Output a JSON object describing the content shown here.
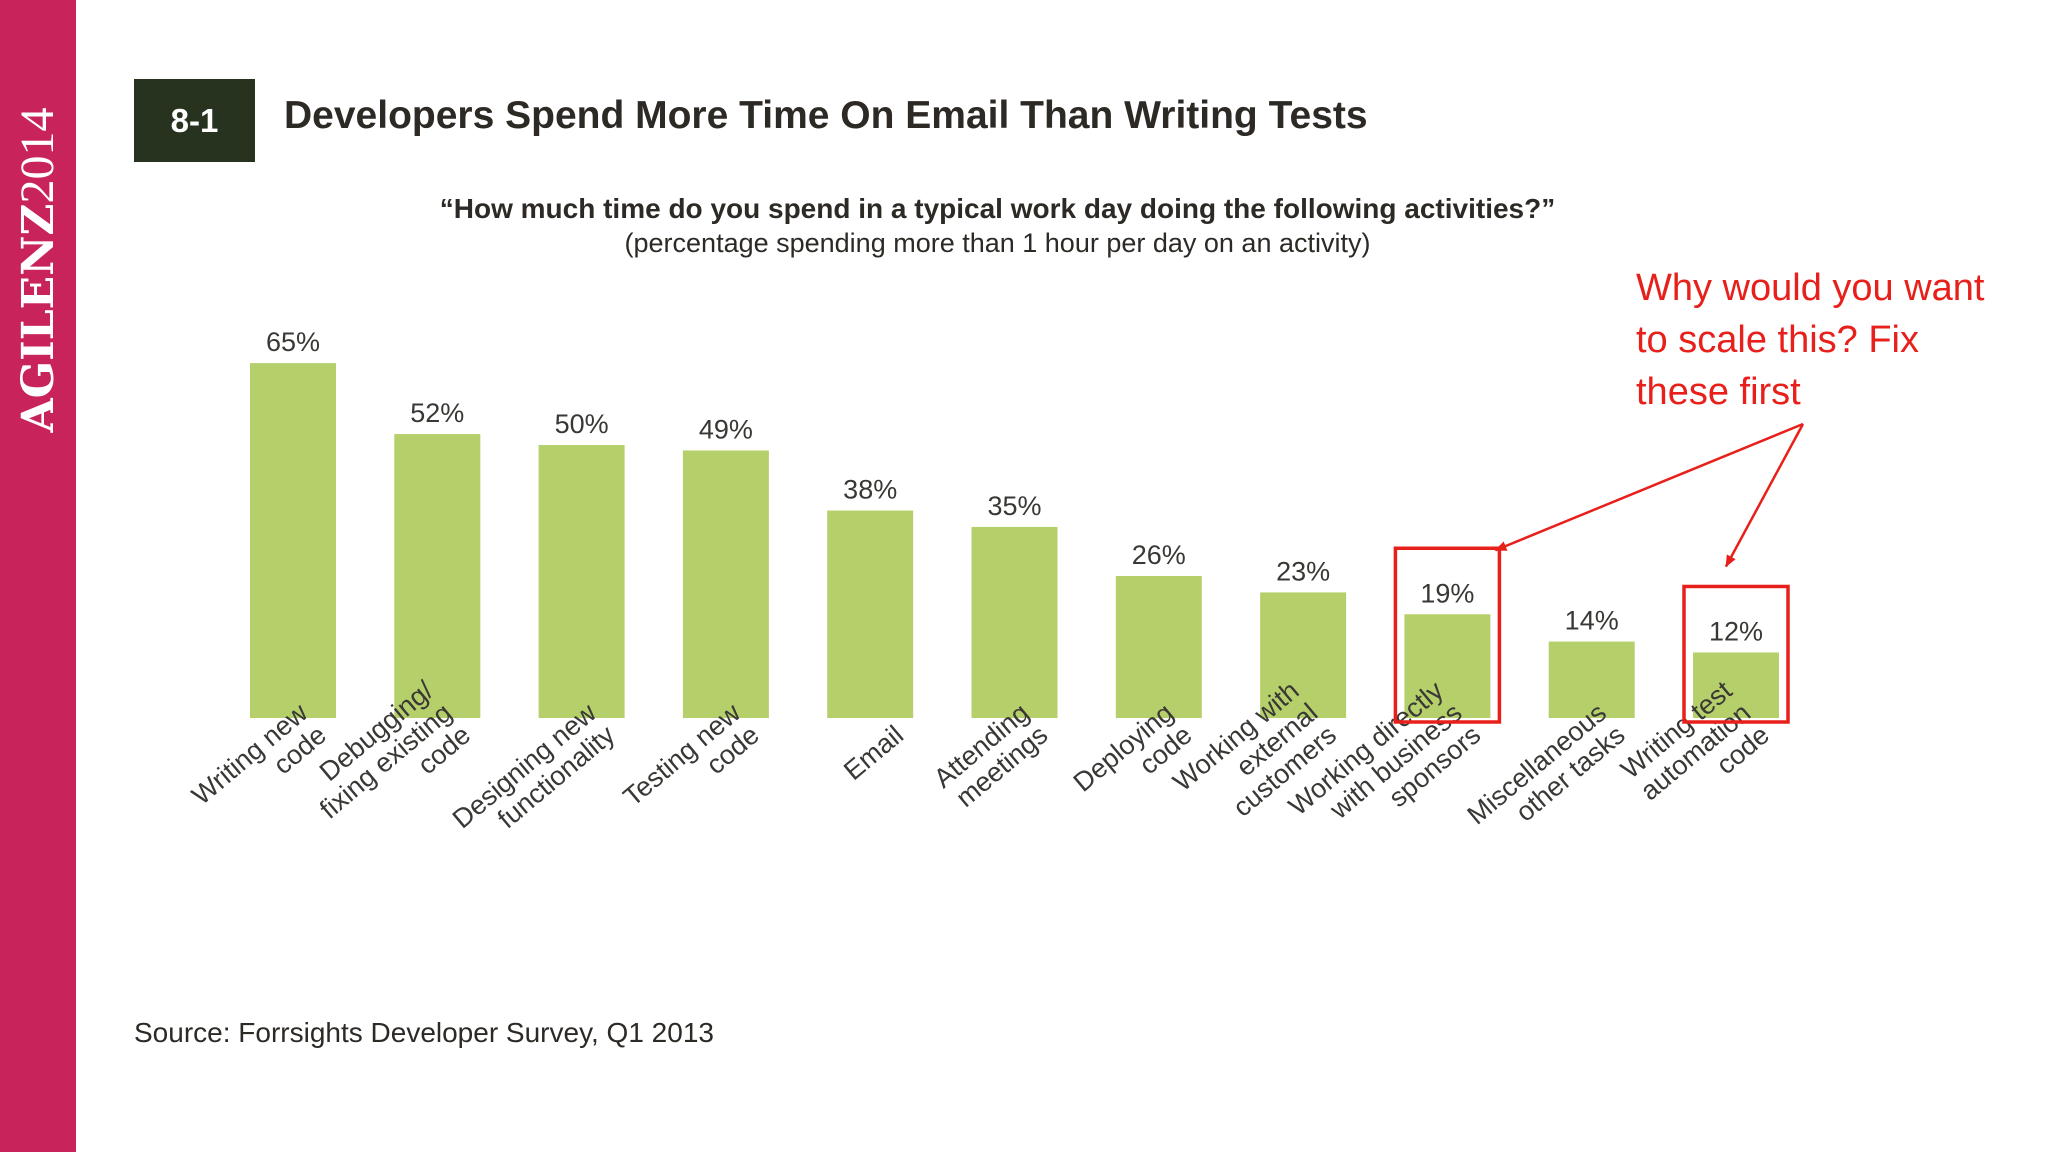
{
  "slide": {
    "brand_bold": "AGILENZ",
    "brand_light": "2014",
    "figure_number": "8-1",
    "title": "Developers Spend More Time On Email Than Writing Tests",
    "question": "“How much time do you spend in a typical work day doing the following activities?”",
    "subtitle": "(percentage spending more than 1 hour per day on an activity)",
    "source": "Source: Forrsights Developer Survey, Q1 2013",
    "annotation_lines": [
      "Why would you want",
      "to scale this? Fix",
      "these first"
    ]
  },
  "colors": {
    "sidebar": "#c8245b",
    "bar": "#b5cf6b",
    "annotation": "#e8201c",
    "badge": "#27321f"
  },
  "chart_data": {
    "type": "bar",
    "title": "Developers Spend More Time On Email Than Writing Tests",
    "xlabel": "",
    "ylabel": "percentage spending more than 1 hour per day on an activity",
    "ylim": [
      0,
      100
    ],
    "categories": [
      [
        "Writing new",
        "code"
      ],
      [
        "Debugging/",
        "fixing existing",
        "code"
      ],
      [
        "Designing new",
        "functionality"
      ],
      [
        "Testing new",
        "code"
      ],
      [
        "Email"
      ],
      [
        "Attending",
        "meetings"
      ],
      [
        "Deploying",
        "code"
      ],
      [
        "Working with",
        "external",
        "customers"
      ],
      [
        "Working directly",
        "with business",
        "sponsors"
      ],
      [
        "Miscellaneous",
        "other tasks"
      ],
      [
        "Writing test",
        "automation",
        "code"
      ]
    ],
    "values": [
      65,
      52,
      50,
      49,
      38,
      35,
      26,
      23,
      19,
      14,
      12
    ],
    "value_labels": [
      "65%",
      "52%",
      "50%",
      "49%",
      "38%",
      "35%",
      "26%",
      "23%",
      "19%",
      "14%",
      "12%"
    ],
    "highlighted_categories": [
      8,
      10
    ]
  }
}
